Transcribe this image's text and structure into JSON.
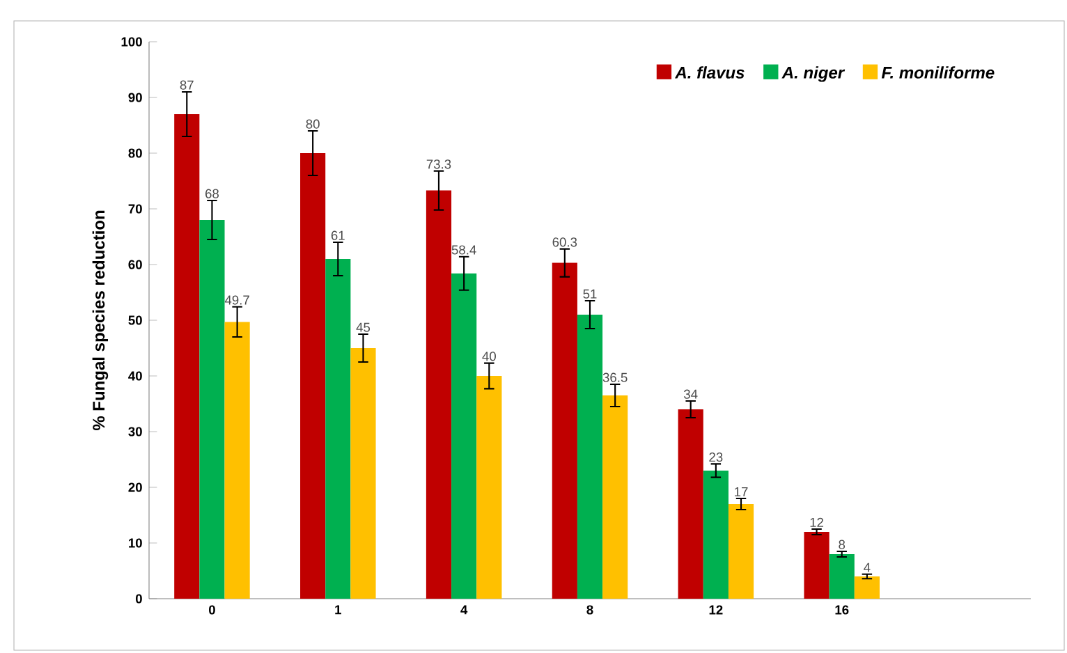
{
  "chart_data": {
    "type": "bar",
    "ylabel": "% Fungal species  reduction",
    "categories": [
      "0",
      "1",
      "4",
      "8",
      "12",
      "16",
      null
    ],
    "series": [
      {
        "name": "A. flavus",
        "color": "#c00000",
        "values": [
          87,
          80,
          73.3,
          60.3,
          34,
          12,
          null
        ],
        "errors": [
          4,
          4,
          3.5,
          2.5,
          1.5,
          0.5,
          null
        ]
      },
      {
        "name": "A. niger",
        "color": "#00b050",
        "values": [
          68,
          61,
          58.4,
          51,
          23,
          8,
          null
        ],
        "errors": [
          3.5,
          3,
          3,
          2.5,
          1.2,
          0.5,
          null
        ]
      },
      {
        "name": "F. moniliforme",
        "color": "#ffc000",
        "values": [
          49.7,
          45,
          40,
          36.5,
          17,
          4,
          null
        ],
        "errors": [
          2.7,
          2.5,
          2.3,
          2,
          1,
          0.4,
          null
        ]
      }
    ],
    "ylim": [
      0,
      100
    ],
    "yticks": [
      0,
      10,
      20,
      30,
      40,
      50,
      60,
      70,
      80,
      90,
      100
    ],
    "data_labels": true,
    "legend": "top right"
  }
}
